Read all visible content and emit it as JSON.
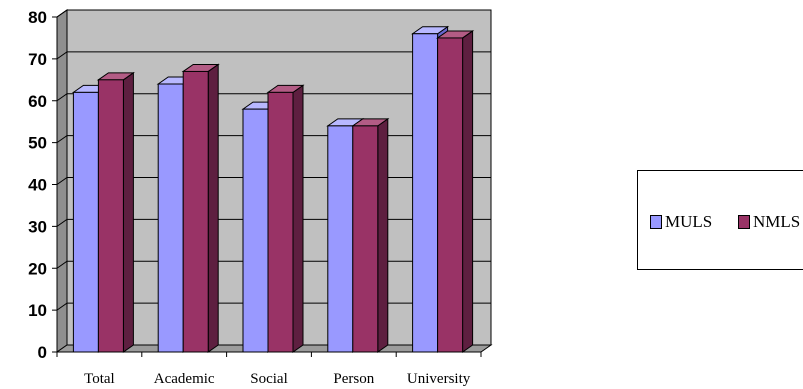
{
  "chart_data": {
    "type": "bar",
    "title": "",
    "xlabel": "",
    "ylabel": "",
    "categories": [
      "Total",
      "Academic",
      "Social",
      "Person",
      "University"
    ],
    "series": [
      {
        "name": "MULS",
        "values": [
          62,
          64,
          58,
          54,
          76
        ]
      },
      {
        "name": "NMLS",
        "values": [
          65,
          67,
          62,
          54,
          75
        ]
      }
    ],
    "ylim": [
      0,
      80
    ],
    "yticks": [
      0,
      10,
      20,
      30,
      40,
      50,
      60,
      70,
      80
    ],
    "grid": true,
    "legend": "right",
    "colors": {
      "series": [
        "#9999ff",
        "#993366"
      ],
      "series_dark": [
        "#6666cc",
        "#5e1f40"
      ],
      "series_light": [
        "#b8b8ff",
        "#b35c85"
      ],
      "wall": "#c0c0c0",
      "floor": "#9c9c9c"
    }
  }
}
